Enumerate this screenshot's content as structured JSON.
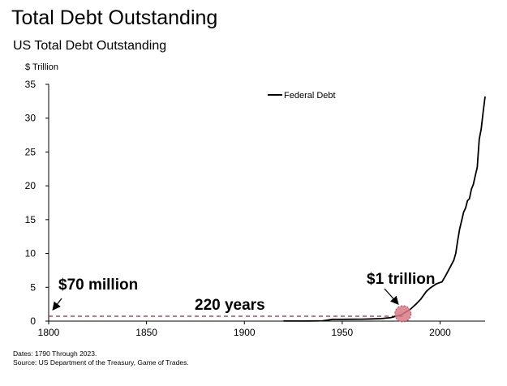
{
  "header": {
    "title": "Total Debt Outstanding",
    "subtitle": "US Total Debt Outstanding"
  },
  "footer": {
    "dates": "Dates: 1790 Through 2023.",
    "source": "Source: US Department of the Treasury, Game of Trades."
  },
  "chart_data": {
    "type": "line",
    "title": "US Total Debt Outstanding",
    "ylabel": "$ Trillion",
    "xlim": [
      1800,
      2023
    ],
    "ylim": [
      0,
      35
    ],
    "x_ticks": [
      1800,
      1850,
      1900,
      1950,
      2000
    ],
    "y_ticks": [
      0,
      5,
      10,
      15,
      20,
      25,
      30,
      35
    ],
    "legend": "top-center",
    "grid": false,
    "series": [
      {
        "name": "Federal Debt",
        "color": "#000000",
        "x": [
          1920,
          1930,
          1940,
          1945,
          1950,
          1955,
          1960,
          1965,
          1970,
          1975,
          1980,
          1985,
          1988,
          1990,
          1993,
          1995,
          1998,
          2000,
          2001,
          2003,
          2005,
          2007,
          2008,
          2009,
          2010,
          2011,
          2012,
          2013,
          2014,
          2015,
          2016,
          2017,
          2018,
          2019,
          2020,
          2021,
          2022,
          2023
        ],
        "y": [
          0.024,
          0.016,
          0.05,
          0.26,
          0.26,
          0.27,
          0.29,
          0.32,
          0.37,
          0.53,
          0.91,
          1.8,
          2.6,
          3.2,
          4.4,
          4.9,
          5.5,
          5.7,
          5.8,
          6.8,
          7.9,
          9.0,
          10.0,
          11.9,
          13.6,
          14.8,
          16.1,
          16.7,
          17.8,
          18.1,
          19.5,
          20.2,
          21.5,
          22.7,
          26.9,
          28.4,
          30.9,
          33.2
        ]
      }
    ],
    "annotations": [
      {
        "text": "$70 million",
        "x": 1800,
        "y": 0.07
      },
      {
        "text": "220 years",
        "x_start": 1800,
        "x_end": 1981,
        "y": 0.6
      },
      {
        "text": "$1 trillion",
        "x": 1981,
        "y": 0.91
      }
    ],
    "reference_line": {
      "y": 0.6,
      "style": "dashed",
      "color": "#8b2a3a"
    },
    "highlight_marker": {
      "x": 1981,
      "y": 0.6,
      "color": "#d77a86"
    }
  }
}
